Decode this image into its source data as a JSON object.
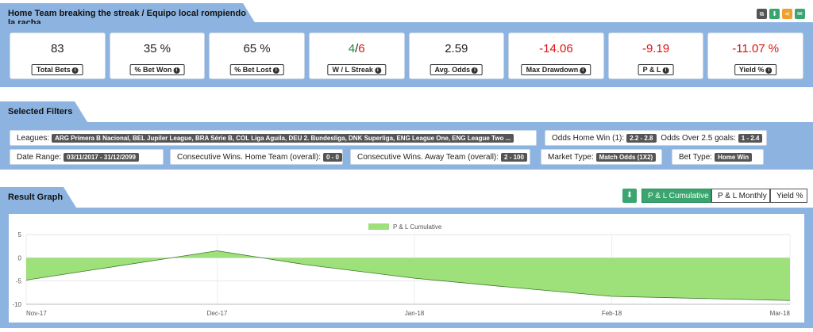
{
  "header": {
    "title": "Home Team breaking the streak / Equipo local rompiendo la racha"
  },
  "stats": [
    {
      "value": "83",
      "label": "Total Bets",
      "color": "normal"
    },
    {
      "value": "35 %",
      "label": "% Bet Won",
      "color": "normal"
    },
    {
      "value": "65 %",
      "label": "% Bet Lost",
      "color": "normal"
    },
    {
      "value_w": "4",
      "value_l": "6",
      "label": "W / L Streak",
      "color": "split"
    },
    {
      "value": "2.59",
      "label": "Avg. Odds",
      "color": "normal"
    },
    {
      "value": "-14.06",
      "label": "Max Drawdown",
      "color": "red"
    },
    {
      "value": "-9.19",
      "label": "P & L",
      "color": "red"
    },
    {
      "value": "-11.07 %",
      "label": "Yield %",
      "color": "red"
    }
  ],
  "filters": {
    "title": "Selected Filters",
    "leagues_label": "Leagues:",
    "leagues_value": "ARG Primera B Nacional, BEL Jupiler League, BRA Série B, COL Liga Aguila, DEU 2. Bundesliga, DNK Superliga, ENG League One, ENG League Two ...",
    "odds_home_label": "Odds Home Win (1):",
    "odds_home_value": "2.2 - 2.8",
    "odds_over_label": "Odds Over 2.5 goals:",
    "odds_over_value": "1 - 2.4",
    "date_label": "Date Range:",
    "date_value": "03/11/2017 - 31/12/2099",
    "cons_home_label": "Consecutive Wins. Home Team (overall):",
    "cons_home_value": "0 - 0",
    "cons_away_label": "Consecutive Wins. Away Team (overall):",
    "cons_away_value": "2 - 100",
    "market_label": "Market Type:",
    "market_value": "Match Odds (1X2)",
    "bettype_label": "Bet Type:",
    "bettype_value": "Home Win"
  },
  "graph": {
    "title": "Result Graph",
    "tabs": [
      "P & L Cumulative",
      "P & L Monthly",
      "Yield %"
    ],
    "active_tab": "P & L Cumulative"
  },
  "colors": {
    "band": "#8db4e0",
    "green": "#3aa56e",
    "area": "#9ee07a",
    "red": "#d11111"
  },
  "chart_data": {
    "type": "area",
    "title": "",
    "legend": [
      "P & L Cumulative"
    ],
    "legend_position": "top-center",
    "x_ticks": [
      "Nov-17",
      "Dec-17",
      "Jan-18",
      "Feb-18",
      "Mar-18"
    ],
    "y_ticks": [
      "5",
      "0",
      "-5",
      "-10"
    ],
    "ylim": [
      -10,
      5
    ],
    "series": [
      {
        "name": "P & L Cumulative",
        "x": [
          "2017-11-01",
          "2017-12-01",
          "2017-12-15",
          "2018-01-01",
          "2018-01-15",
          "2018-02-01",
          "2018-03-01"
        ],
        "y": [
          -4.8,
          1.5,
          -1.5,
          -4.4,
          -6.2,
          -8.3,
          -9.19
        ]
      }
    ],
    "grid": true
  }
}
